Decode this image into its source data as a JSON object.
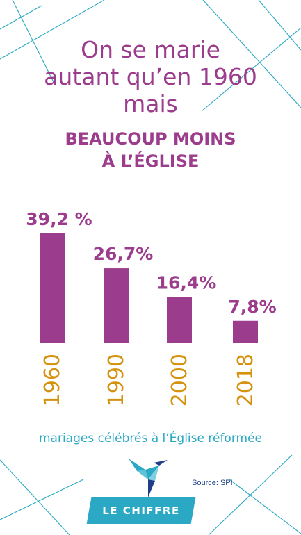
{
  "title_lines": [
    "On se marie",
    "autant qu’en 1960",
    "mais"
  ],
  "subtitle_lines": [
    "BEAUCOUP MOINS",
    "À L’ÉGLISE"
  ],
  "chart_data": {
    "type": "bar",
    "categories": [
      "1960",
      "1990",
      "2000",
      "2018"
    ],
    "values": [
      39.2,
      26.7,
      16.4,
      7.8
    ],
    "value_labels": [
      "39,2 %",
      "26,7%",
      "16,4%",
      "7,8%"
    ],
    "unit": "%",
    "ylim": [
      0,
      40
    ],
    "xlabel": "",
    "ylabel": "",
    "title": "mariages célébrés à l’Église réformée",
    "grid": false,
    "legend": "none",
    "colors": {
      "bar": "#9b3c8c",
      "value_label": "#9b3c8c",
      "category_label": "#d4920f"
    }
  },
  "caption": "mariages célébrés à l’Église réformée",
  "source": "Source: SPI",
  "badge_label": "LE CHIFFRE",
  "colors": {
    "purple": "#9b3c8c",
    "teal": "#2aa8c4",
    "gold": "#d4920f",
    "navy": "#1e3f88"
  },
  "icons": {
    "logo": "origami-bird-icon"
  }
}
